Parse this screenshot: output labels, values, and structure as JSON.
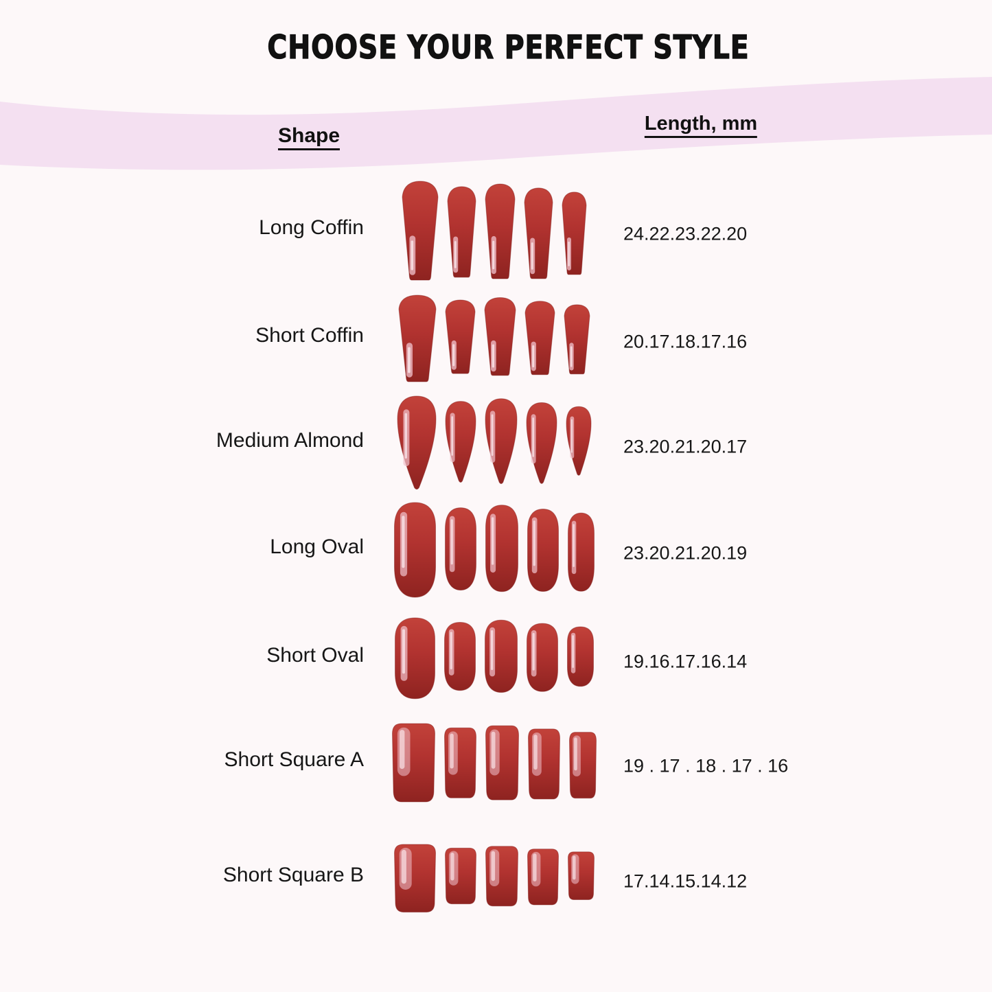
{
  "title": "CHOOSE YOUR PERFECT STYLE",
  "columns": {
    "shape": "Shape",
    "length": "Length, mm"
  },
  "rows": [
    {
      "shape": "Long Coffin",
      "nail_shape": "coffin",
      "lengths_display": "24.22.23.22.20",
      "lengths_mm": [
        24,
        22,
        23,
        22,
        20
      ]
    },
    {
      "shape": "Short Coffin",
      "nail_shape": "coffin",
      "lengths_display": "20.17.18.17.16",
      "lengths_mm": [
        20,
        17,
        18,
        17,
        16
      ]
    },
    {
      "shape": "Medium Almond",
      "nail_shape": "almond",
      "lengths_display": "23.20.21.20.17",
      "lengths_mm": [
        23,
        20,
        21,
        20,
        17
      ]
    },
    {
      "shape": "Long Oval",
      "nail_shape": "oval",
      "lengths_display": "23.20.21.20.19",
      "lengths_mm": [
        23,
        20,
        21,
        20,
        19
      ]
    },
    {
      "shape": "Short Oval",
      "nail_shape": "oval",
      "lengths_display": "19.16.17.16.14",
      "lengths_mm": [
        19,
        16,
        17,
        16,
        14
      ]
    },
    {
      "shape": "Short Square A",
      "nail_shape": "square",
      "lengths_display": "19 . 17 . 18 . 17 . 16",
      "lengths_mm": [
        19,
        17,
        18,
        17,
        16
      ]
    },
    {
      "shape": "Short Square B",
      "nail_shape": "square",
      "lengths_display": "17.14.15.14.12",
      "lengths_mm": [
        17,
        14,
        15,
        14,
        12
      ]
    }
  ],
  "colors": {
    "background": "#fdf8f9",
    "band_pink": "#f4e0f1",
    "text": "#111111",
    "nail_red_light": "#c2423a",
    "nail_red": "#b23330",
    "nail_red_dark": "#8e2320",
    "nail_edge": "#7d1916",
    "nail_highlight": "#f1c3cd",
    "nail_highlight_core": "#f9e4e8"
  },
  "chart_data": {
    "type": "table",
    "title": "CHOOSE YOUR PERFECT STYLE",
    "columns": [
      "Shape",
      "Length, mm"
    ],
    "rows": [
      [
        "Long Coffin",
        "24.22.23.22.20"
      ],
      [
        "Short Coffin",
        "20.17.18.17.16"
      ],
      [
        "Medium Almond",
        "23.20.21.20.17"
      ],
      [
        "Long Oval",
        "23.20.21.20.19"
      ],
      [
        "Short Oval",
        "19.16.17.16.14"
      ],
      [
        "Short Square A",
        "19.17.18.17.16"
      ],
      [
        "Short Square B",
        "17.14.15.14.12"
      ]
    ]
  }
}
